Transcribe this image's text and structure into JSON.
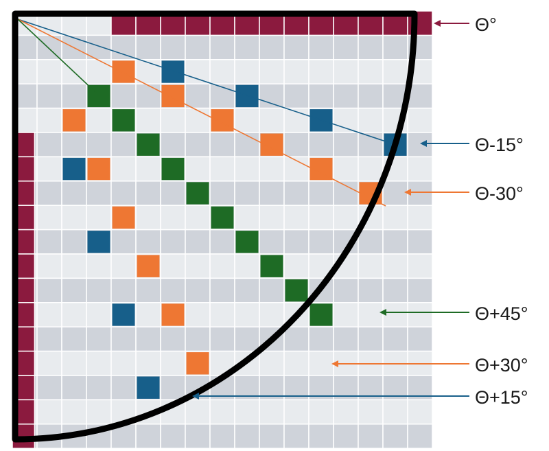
{
  "grid": {
    "rows": 18,
    "cols": 17,
    "row_fill_odd": "#e8ebee",
    "row_fill_even": "#cfd3da",
    "line_color": "#ffffff",
    "border_color": "#8b1a3e"
  },
  "colors": {
    "theta": "#8b1a3e",
    "plus_minus_15": "#175f8a",
    "plus_minus_30": "#ee7733",
    "plus_45": "#1e6b25",
    "arc": "#000000"
  },
  "cells": {
    "blue": [
      [
        2,
        6
      ],
      [
        3,
        9
      ],
      [
        4,
        12
      ],
      [
        5,
        15
      ],
      [
        6,
        2
      ],
      [
        9,
        3
      ],
      [
        12,
        4
      ],
      [
        15,
        5
      ]
    ],
    "orange": [
      [
        2,
        4
      ],
      [
        3,
        6
      ],
      [
        4,
        2
      ],
      [
        4,
        8
      ],
      [
        5,
        10
      ],
      [
        6,
        3
      ],
      [
        6,
        12
      ],
      [
        7,
        14
      ],
      [
        8,
        4
      ],
      [
        10,
        5
      ],
      [
        12,
        6
      ],
      [
        14,
        7
      ]
    ],
    "green": [
      [
        3,
        3
      ],
      [
        4,
        4
      ],
      [
        5,
        5
      ],
      [
        6,
        6
      ],
      [
        7,
        7
      ],
      [
        8,
        8
      ],
      [
        9,
        9
      ],
      [
        10,
        10
      ],
      [
        11,
        11
      ],
      [
        12,
        12
      ]
    ]
  },
  "labels": [
    {
      "id": "theta",
      "text": "Θ°",
      "color": "#8b1a3e"
    },
    {
      "id": "minus15",
      "text": "Θ-15°",
      "color": "#175f8a"
    },
    {
      "id": "minus30",
      "text": "Θ-30°",
      "color": "#ee7733"
    },
    {
      "id": "plus45",
      "text": "Θ+45°",
      "color": "#1e6b25"
    },
    {
      "id": "plus30",
      "text": "Θ+30°",
      "color": "#ee7733"
    },
    {
      "id": "plus15",
      "text": "Θ+15°",
      "color": "#175f8a"
    }
  ]
}
